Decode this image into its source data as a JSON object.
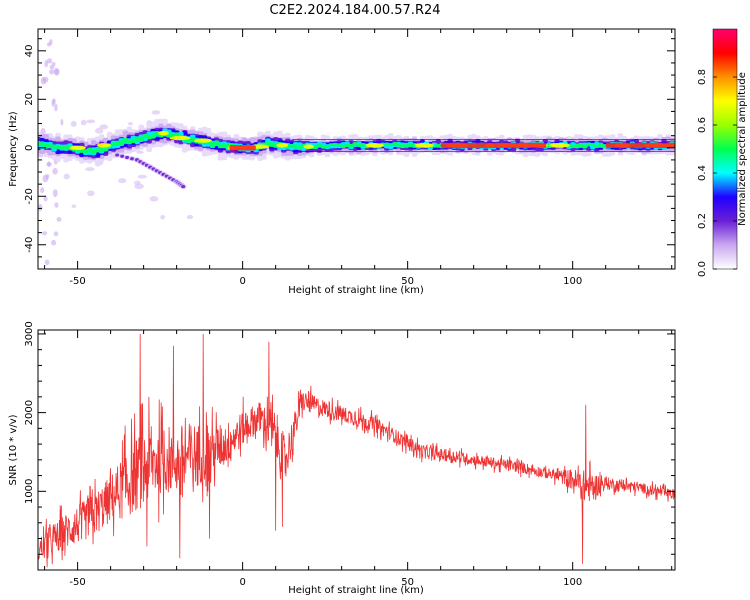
{
  "figure": {
    "title": "C2E2.2024.184.00.57.R24"
  },
  "chart_data": [
    {
      "type": "heatmap",
      "xlabel": "Height of straight line (km)",
      "ylabel": "Frequency (Hz)",
      "xlim": [
        -62,
        131
      ],
      "ylim": [
        -50,
        49
      ],
      "x_ticks": [
        -50,
        0,
        50,
        100
      ],
      "y_ticks": [
        -40,
        -20,
        0,
        20,
        40
      ],
      "colorbar": {
        "label": "Normalized spectral amplitude",
        "range": [
          0,
          1
        ],
        "ticks": [
          "0.0",
          "0.2",
          "0.4",
          "0.6",
          "0.8"
        ],
        "colors": [
          "#ffffff",
          "#c9a8f0",
          "#6a1fd6",
          "#2000ff",
          "#00ffff",
          "#00ff50",
          "#9cff00",
          "#ffff00",
          "#ff9000",
          "#ff0000",
          "#ff0070"
        ]
      },
      "ridge": [
        {
          "x": -60,
          "f": 1.5
        },
        {
          "x": -56,
          "f": 0.0
        },
        {
          "x": -52,
          "f": 0.0
        },
        {
          "x": -48,
          "f": -1.5
        },
        {
          "x": -44,
          "f": -1.0
        },
        {
          "x": -40,
          "f": 0.5
        },
        {
          "x": -36,
          "f": 2.5
        },
        {
          "x": -32,
          "f": 3.5
        },
        {
          "x": -28,
          "f": 5.0
        },
        {
          "x": -24,
          "f": 6.0
        },
        {
          "x": -20,
          "f": 5.0
        },
        {
          "x": -16,
          "f": 3.5
        },
        {
          "x": -12,
          "f": 2.5
        },
        {
          "x": -8,
          "f": 1.5
        },
        {
          "x": -4,
          "f": 0.5
        },
        {
          "x": 0,
          "f": 0.0
        },
        {
          "x": 4,
          "f": 0.0
        },
        {
          "x": 8,
          "f": 2.0
        },
        {
          "x": 12,
          "f": 1.0
        },
        {
          "x": 16,
          "f": 0.5
        },
        {
          "x": 20,
          "f": 0.5
        },
        {
          "x": 30,
          "f": 1.0
        },
        {
          "x": 50,
          "f": 1.0
        },
        {
          "x": 70,
          "f": 1.0
        },
        {
          "x": 90,
          "f": 1.0
        },
        {
          "x": 100,
          "f": 1.0
        },
        {
          "x": 110,
          "f": 1.0
        },
        {
          "x": 131,
          "f": 1.0
        }
      ],
      "branch": [
        {
          "x": -38,
          "f": -3.0
        },
        {
          "x": -32,
          "f": -5.0
        },
        {
          "x": -28,
          "f": -8.0
        },
        {
          "x": -24,
          "f": -11.0
        },
        {
          "x": -20,
          "f": -14.0
        },
        {
          "x": -18,
          "f": -16.0
        }
      ]
    },
    {
      "type": "line",
      "xlabel": "Height of straight line (km)",
      "ylabel": "SNR (10 * v/v)",
      "xlim": [
        -62,
        131
      ],
      "ylim": [
        0,
        3050
      ],
      "x_ticks": [
        -50,
        0,
        50,
        100
      ],
      "y_ticks": [
        1000,
        2000,
        3000
      ],
      "series": [
        {
          "color": "#ee3333",
          "envelope": [
            {
              "x": -62,
              "base": 250,
              "amp": 300
            },
            {
              "x": -55,
              "base": 450,
              "amp": 400
            },
            {
              "x": -45,
              "base": 700,
              "amp": 500
            },
            {
              "x": -40,
              "base": 900,
              "amp": 550
            },
            {
              "x": -35,
              "base": 1100,
              "amp": 800
            },
            {
              "x": -30,
              "base": 1300,
              "amp": 900
            },
            {
              "x": -25,
              "base": 1400,
              "amp": 800
            },
            {
              "x": -20,
              "base": 1400,
              "amp": 800
            },
            {
              "x": -15,
              "base": 1450,
              "amp": 800
            },
            {
              "x": -10,
              "base": 1500,
              "amp": 600
            },
            {
              "x": -5,
              "base": 1600,
              "amp": 500
            },
            {
              "x": 0,
              "base": 1800,
              "amp": 400
            },
            {
              "x": 5,
              "base": 1950,
              "amp": 350
            },
            {
              "x": 10,
              "base": 1700,
              "amp": 600
            },
            {
              "x": 13,
              "base": 1400,
              "amp": 500
            },
            {
              "x": 18,
              "base": 2150,
              "amp": 250
            },
            {
              "x": 25,
              "base": 2050,
              "amp": 200
            },
            {
              "x": 40,
              "base": 1850,
              "amp": 170
            },
            {
              "x": 55,
              "base": 1500,
              "amp": 150
            },
            {
              "x": 70,
              "base": 1400,
              "amp": 130
            },
            {
              "x": 85,
              "base": 1300,
              "amp": 130
            },
            {
              "x": 95,
              "base": 1200,
              "amp": 130
            },
            {
              "x": 100,
              "base": 1150,
              "amp": 250
            },
            {
              "x": 104,
              "base": 1050,
              "amp": 400
            },
            {
              "x": 110,
              "base": 1100,
              "amp": 150
            },
            {
              "x": 120,
              "base": 1050,
              "amp": 120
            },
            {
              "x": 131,
              "base": 950,
              "amp": 120
            }
          ],
          "spikes": [
            {
              "x": -31,
              "y": 3000
            },
            {
              "x": -29,
              "y": 300
            },
            {
              "x": -21,
              "y": 2850
            },
            {
              "x": -19,
              "y": 150
            },
            {
              "x": -12,
              "y": 3000
            },
            {
              "x": -10,
              "y": 400
            },
            {
              "x": 8,
              "y": 2900
            },
            {
              "x": 10,
              "y": 500
            },
            {
              "x": 12,
              "y": 550
            },
            {
              "x": 103,
              "y": 80
            },
            {
              "x": 104,
              "y": 2100
            }
          ]
        }
      ]
    }
  ]
}
